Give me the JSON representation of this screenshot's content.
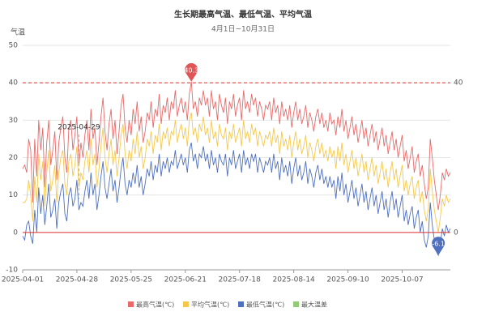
{
  "chart_data": {
    "type": "line",
    "title": "生长期最高气温、最低气温、平均气温",
    "subtitle": "4月1日~10月31日",
    "y_axis_label": "气温",
    "categories": [
      "2025-04-01",
      null,
      null,
      null,
      null,
      null,
      null,
      null,
      null,
      null,
      null,
      null,
      null,
      null,
      null,
      null,
      null,
      null,
      null,
      null,
      null,
      null,
      null,
      null,
      null,
      null,
      null,
      "2025-04-28",
      null,
      null,
      null,
      null,
      null,
      null,
      null,
      null,
      null,
      null,
      null,
      null,
      null,
      null,
      null,
      null,
      null,
      null,
      null,
      null,
      null,
      null,
      null,
      null,
      null,
      null,
      "2025-05-25",
      null,
      null,
      null,
      null,
      null,
      null,
      null,
      null,
      null,
      null,
      null,
      null,
      null,
      null,
      null,
      null,
      null,
      null,
      null,
      null,
      null,
      null,
      null,
      null,
      null,
      null,
      "2025-06-21",
      null,
      null,
      null,
      null,
      null,
      null,
      null,
      null,
      null,
      null,
      null,
      null,
      null,
      null,
      null,
      null,
      null,
      null,
      null,
      null,
      null,
      null,
      null,
      null,
      null,
      null,
      "2025-07-18",
      null,
      null,
      null,
      null,
      null,
      null,
      null,
      null,
      null,
      null,
      null,
      null,
      null,
      null,
      null,
      null,
      null,
      null,
      null,
      null,
      null,
      null,
      null,
      null,
      null,
      null,
      "2025-08-14",
      null,
      null,
      null,
      null,
      null,
      null,
      null,
      null,
      null,
      null,
      null,
      null,
      null,
      null,
      null,
      null,
      null,
      null,
      null,
      null,
      null,
      null,
      null,
      null,
      null,
      null,
      "2025-09-10",
      null,
      null,
      null,
      null,
      null,
      null,
      null,
      null,
      null,
      null,
      null,
      null,
      null,
      null,
      null,
      null,
      null,
      null,
      null,
      null,
      null,
      null,
      null,
      null,
      null,
      null,
      "2025-10-07",
      null,
      null,
      null,
      null,
      null,
      null,
      null,
      null,
      null,
      null,
      null,
      null,
      null,
      null,
      null,
      null,
      null,
      null,
      null,
      null,
      null,
      null,
      null,
      null
    ],
    "series": [
      {
        "name": "最高气温(℃)",
        "color": "#e86a6a",
        "values": [
          17,
          18,
          16,
          25,
          22,
          8,
          25,
          15,
          30,
          22,
          28,
          12,
          24,
          30,
          18,
          22,
          27,
          14,
          24,
          28,
          31,
          20,
          16,
          28,
          30,
          22,
          26,
          31,
          18,
          24,
          20,
          26,
          30,
          22,
          33,
          25,
          28,
          18,
          24,
          31,
          36,
          27,
          22,
          29,
          33,
          25,
          30,
          21,
          27,
          34,
          37,
          28,
          24,
          30,
          26,
          33,
          29,
          35,
          27,
          31,
          24,
          27,
          32,
          30,
          35,
          28,
          33,
          31,
          37,
          29,
          34,
          32,
          36,
          30,
          35,
          33,
          38,
          31,
          34,
          36,
          32,
          35,
          30,
          37,
          40.3,
          33,
          35,
          31,
          36,
          34,
          38,
          34,
          36,
          31,
          38,
          33,
          35,
          30,
          37,
          34,
          32,
          36,
          29,
          35,
          33,
          37,
          31,
          34,
          36,
          30,
          38,
          33,
          35,
          32,
          37,
          34,
          36,
          31,
          35,
          33,
          30,
          34,
          33,
          35,
          30,
          36,
          32,
          34,
          29,
          35,
          31,
          33,
          30,
          34,
          28,
          32,
          35,
          30,
          33,
          29,
          31,
          34,
          28,
          32,
          30,
          27,
          31,
          33,
          29,
          32,
          28,
          30,
          27,
          32,
          29,
          30,
          26,
          31,
          28,
          33,
          27,
          30,
          25,
          28,
          31,
          26,
          29,
          24,
          27,
          30,
          25,
          28,
          23,
          26,
          29,
          24,
          27,
          22,
          25,
          28,
          23,
          26,
          21,
          24,
          27,
          22,
          25,
          20,
          23,
          26,
          19,
          22,
          17,
          20,
          23,
          16,
          19,
          21,
          15,
          18,
          13,
          9,
          12,
          25,
          20,
          14,
          10,
          6,
          10,
          16,
          14,
          17,
          15,
          16
        ]
      },
      {
        "name": "平均气温(℃)",
        "color": "#f5c84c",
        "values": [
          8,
          8,
          9,
          14,
          10,
          3,
          15,
          8,
          21,
          14,
          19,
          7,
          16,
          22,
          11,
          14,
          18,
          8,
          16,
          20,
          22,
          13,
          10,
          19,
          21,
          15,
          18,
          23,
          12,
          16,
          14,
          19,
          22,
          16,
          25,
          18,
          21,
          12,
          17,
          23,
          28,
          20,
          16,
          21,
          25,
          18,
          22,
          15,
          20,
          26,
          29,
          21,
          17,
          22,
          19,
          25,
          21,
          27,
          20,
          23,
          17,
          20,
          25,
          23,
          27,
          21,
          26,
          24,
          29,
          22,
          27,
          25,
          28,
          23,
          27,
          26,
          30,
          24,
          27,
          29,
          25,
          28,
          23,
          30,
          32,
          26,
          28,
          24,
          29,
          27,
          31,
          26,
          28,
          24,
          30,
          25,
          27,
          23,
          29,
          26,
          25,
          28,
          22,
          27,
          25,
          29,
          24,
          26,
          28,
          23,
          30,
          25,
          27,
          24,
          29,
          26,
          28,
          23,
          27,
          25,
          23,
          26,
          25,
          27,
          23,
          28,
          24,
          26,
          21,
          27,
          23,
          25,
          22,
          26,
          20,
          24,
          27,
          22,
          25,
          21,
          23,
          26,
          20,
          24,
          22,
          19,
          23,
          25,
          21,
          24,
          20,
          22,
          19,
          23,
          20,
          22,
          17,
          23,
          19,
          24,
          18,
          21,
          16,
          19,
          22,
          17,
          20,
          15,
          18,
          21,
          16,
          19,
          14,
          17,
          20,
          15,
          18,
          13,
          16,
          19,
          14,
          17,
          12,
          16,
          19,
          14,
          17,
          12,
          15,
          18,
          11,
          14,
          10,
          13,
          15,
          9,
          12,
          14,
          8,
          11,
          6,
          3,
          6,
          17,
          11,
          6,
          3,
          0,
          4,
          9,
          7,
          10,
          8,
          9
        ]
      },
      {
        "name": "最低气温(℃)",
        "color": "#4f6fbf",
        "values": [
          -1,
          -2,
          2,
          3,
          -1,
          -3,
          6,
          0,
          12,
          5,
          10,
          2,
          7,
          13,
          4,
          6,
          9,
          1,
          8,
          11,
          13,
          5,
          3,
          10,
          12,
          7,
          9,
          14,
          6,
          8,
          7,
          11,
          14,
          9,
          16,
          10,
          13,
          6,
          10,
          15,
          19,
          12,
          9,
          13,
          17,
          11,
          14,
          8,
          12,
          17,
          20,
          13,
          10,
          14,
          12,
          16,
          13,
          18,
          12,
          15,
          10,
          13,
          17,
          15,
          19,
          14,
          18,
          16,
          21,
          15,
          19,
          17,
          20,
          16,
          19,
          18,
          22,
          17,
          19,
          21,
          18,
          20,
          16,
          22,
          24,
          19,
          21,
          17,
          21,
          20,
          23,
          19,
          21,
          17,
          22,
          18,
          20,
          16,
          21,
          19,
          18,
          21,
          15,
          20,
          18,
          22,
          17,
          19,
          21,
          16,
          22,
          18,
          20,
          17,
          21,
          19,
          21,
          16,
          20,
          18,
          16,
          19,
          18,
          20,
          16,
          21,
          17,
          19,
          14,
          20,
          16,
          18,
          15,
          19,
          13,
          17,
          20,
          15,
          18,
          14,
          16,
          19,
          13,
          17,
          15,
          12,
          16,
          18,
          14,
          17,
          13,
          15,
          12,
          15,
          12,
          14,
          9,
          15,
          11,
          16,
          10,
          13,
          8,
          11,
          14,
          9,
          12,
          7,
          10,
          13,
          8,
          11,
          6,
          9,
          12,
          7,
          10,
          5,
          8,
          11,
          6,
          9,
          4,
          8,
          11,
          6,
          9,
          4,
          7,
          10,
          3,
          6,
          2,
          5,
          7,
          1,
          4,
          6,
          0,
          3,
          -2,
          -4,
          -1,
          8,
          2,
          -2,
          -5,
          -6.1,
          -3,
          1,
          -1,
          2,
          0,
          1
        ]
      },
      {
        "name": "最大温差",
        "color": "#91cc75",
        "values": [
          null,
          null,
          null,
          null,
          null,
          null,
          null,
          null,
          null,
          null,
          null,
          null,
          null,
          null,
          null,
          null,
          null,
          null,
          null,
          null,
          null,
          null,
          null,
          null,
          null,
          null,
          null,
          null,
          null,
          null,
          null,
          null,
          null,
          null,
          null,
          null,
          null,
          null,
          null,
          null,
          null,
          null,
          null,
          null,
          null,
          null,
          null,
          null,
          null,
          null,
          null,
          null,
          null,
          null,
          null,
          null,
          null,
          null,
          null,
          null,
          null,
          null,
          null,
          null,
          null,
          null,
          null,
          null,
          null,
          null,
          null,
          null,
          null,
          null,
          null,
          null,
          null,
          null,
          null,
          null,
          null,
          null,
          null,
          null,
          null,
          null,
          null,
          null,
          null,
          null,
          null,
          null,
          null,
          null,
          null,
          null,
          null,
          null,
          null,
          null,
          null,
          null,
          null,
          null,
          null,
          null,
          null,
          null,
          null,
          null,
          null,
          null,
          null,
          null,
          null,
          null,
          null,
          null,
          null,
          null,
          null,
          null,
          null,
          null,
          null,
          null,
          null,
          null,
          null,
          null,
          null,
          null,
          null,
          null,
          null,
          null,
          null,
          null,
          null,
          null,
          null,
          null,
          null,
          null,
          null,
          null,
          null,
          null,
          null,
          null,
          null,
          null,
          null,
          null,
          null,
          null,
          null,
          null,
          null,
          null,
          null,
          null,
          null,
          null,
          null,
          null,
          null,
          null,
          null,
          null,
          null,
          null,
          null,
          null,
          null,
          null,
          null,
          null,
          null,
          null,
          null,
          null,
          null,
          null,
          null,
          null,
          null,
          null,
          null,
          null,
          null,
          null,
          null,
          null,
          null,
          null,
          null,
          null,
          null,
          null,
          null,
          null,
          null,
          null,
          null,
          null,
          null,
          null,
          null,
          null,
          null,
          null,
          null,
          null
        ]
      }
    ],
    "ylim": [
      -10,
      50
    ],
    "yticks": [
      -10,
      0,
      10,
      20,
      30,
      40,
      50
    ],
    "grid": true,
    "mark_lines": [
      {
        "value": 40,
        "style": "dashed",
        "color": "#e03030"
      },
      {
        "value": 0,
        "style": "solid",
        "color": "#e03030"
      }
    ],
    "mark_points": [
      {
        "value": 40.3,
        "color": "#e05555"
      },
      {
        "value": -6.1,
        "color": "#4f6fbf"
      }
    ],
    "annotation": {
      "text": "2025-04-29"
    },
    "legend": "bottom"
  }
}
